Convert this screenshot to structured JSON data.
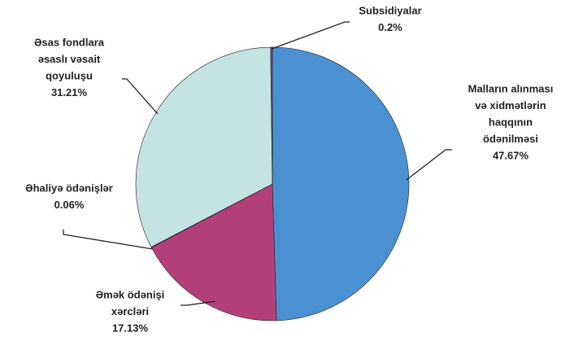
{
  "chart_data": {
    "type": "pie",
    "categories": [
      [
        "Malların alınması",
        "və xidmətlərin",
        "haqqının",
        "ödənilməsi"
      ],
      [
        "Əmək ödənişi",
        "xərcləri"
      ],
      [
        "Əhaliyə ödənişlər"
      ],
      [
        "Əsas fondlara",
        "əsaslı vəsait",
        "qoyuluşu"
      ],
      [
        "Subsidiyalar"
      ]
    ],
    "values": [
      47.67,
      17.13,
      0.06,
      31.21,
      0.2
    ],
    "value_labels": [
      "47.67%",
      "17.13%",
      "0.06%",
      "31.21%",
      "0.2%"
    ],
    "colors": [
      "#4b90d1",
      "#b4407a",
      "#2a2a2a",
      "#c4e3e3",
      "#7a4e9f"
    ]
  }
}
